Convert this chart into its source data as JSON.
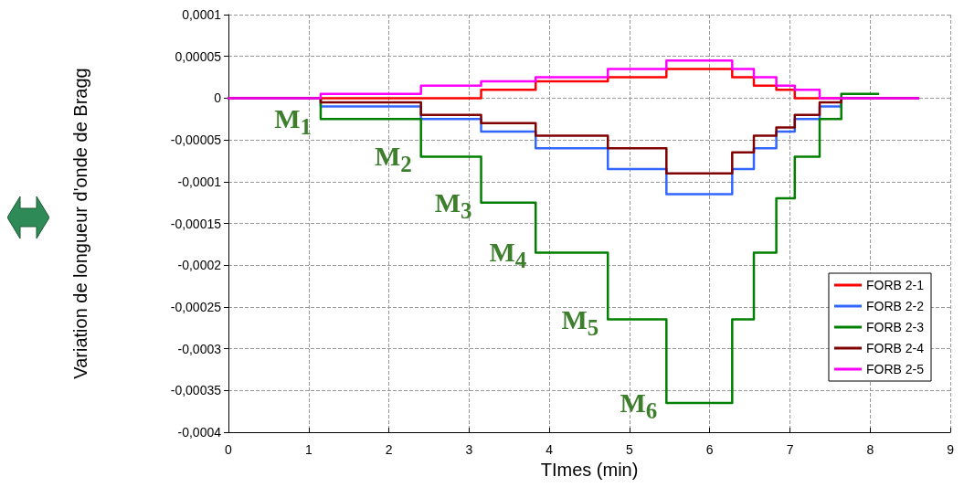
{
  "chart_data": {
    "type": "step",
    "xlabel": "TImes (min)",
    "ylabel": "Variation de longueur d'onde de Bragg",
    "xlim": [
      0,
      9
    ],
    "xticks": [
      0,
      1,
      2,
      3,
      4,
      5,
      6,
      7,
      8,
      9
    ],
    "ylim": [
      -0.0004,
      0.0001
    ],
    "yticks": [
      {
        "value": -0.0004,
        "label": "-0,0004"
      },
      {
        "value": -0.00035,
        "label": "-0,00035"
      },
      {
        "value": -0.0003,
        "label": "-0,0003"
      },
      {
        "value": -0.00025,
        "label": "-0,00025"
      },
      {
        "value": -0.0002,
        "label": "-0,0002"
      },
      {
        "value": -0.00015,
        "label": "-0,00015"
      },
      {
        "value": -0.0001,
        "label": "-0,0001"
      },
      {
        "value": -5e-05,
        "label": "-0,00005"
      },
      {
        "value": 0,
        "label": "0"
      },
      {
        "value": 5e-05,
        "label": "0,00005"
      },
      {
        "value": 0.0001,
        "label": "0,0001"
      }
    ],
    "grid": true,
    "legend": "bottom right",
    "marker": "none",
    "line_style": "solid",
    "series": [
      {
        "name": "FORB 2-1",
        "color": "#ff0000",
        "x": [
          0,
          3.15,
          3.83,
          4.73,
          5.46,
          6.28,
          6.55,
          6.83,
          7.06,
          8.6
        ],
        "values": [
          0,
          1e-05,
          2e-05,
          2.5e-05,
          3.5e-05,
          2.5e-05,
          1.5e-05,
          1e-05,
          0,
          0
        ]
      },
      {
        "name": "FORB 2-2",
        "color": "#3366ff",
        "x": [
          0,
          1.15,
          2.4,
          3.15,
          3.83,
          4.73,
          5.46,
          6.28,
          6.55,
          6.83,
          7.06,
          7.37,
          7.64,
          8.6
        ],
        "values": [
          0,
          -1e-05,
          -2.5e-05,
          -4e-05,
          -6e-05,
          -8.5e-05,
          -0.000115,
          -8.5e-05,
          -6e-05,
          -4e-05,
          -2.5e-05,
          -1e-05,
          0,
          0
        ]
      },
      {
        "name": "FORB 2-3",
        "color": "#008000",
        "x": [
          0,
          1.15,
          2.4,
          3.15,
          3.83,
          4.73,
          5.46,
          6.28,
          6.55,
          6.83,
          7.06,
          7.37,
          7.64,
          8.1
        ],
        "values": [
          0,
          -2.5e-05,
          -7e-05,
          -0.000125,
          -0.000185,
          -0.000265,
          -0.000365,
          -0.000265,
          -0.000185,
          -0.00012,
          -7e-05,
          -2.5e-05,
          5e-06,
          5e-06
        ]
      },
      {
        "name": "FORB 2-4",
        "color": "#800000",
        "x": [
          0,
          1.15,
          2.4,
          3.15,
          3.83,
          4.73,
          5.46,
          6.28,
          6.55,
          6.83,
          7.06,
          7.37,
          7.64,
          8.6
        ],
        "values": [
          0,
          -5e-06,
          -2e-05,
          -3e-05,
          -4.5e-05,
          -6e-05,
          -9e-05,
          -6.5e-05,
          -4.5e-05,
          -3.5e-05,
          -2e-05,
          -5e-06,
          0,
          0
        ]
      },
      {
        "name": "FORB 2-5",
        "color": "#ff00ff",
        "x": [
          0,
          1.15,
          2.4,
          3.15,
          3.83,
          4.73,
          5.46,
          6.28,
          6.55,
          6.83,
          7.06,
          7.37,
          7.64,
          8.6
        ],
        "values": [
          0,
          5e-06,
          1.5e-05,
          2e-05,
          2.5e-05,
          3.5e-05,
          4.5e-05,
          3.5e-05,
          2.5e-05,
          1.5e-05,
          1e-05,
          0,
          0,
          0
        ]
      }
    ],
    "annotations": [
      {
        "text": "M$_{1}$",
        "x": 1.15,
        "y": -2.5e-05
      },
      {
        "text": "M$_{2}$",
        "x": 2.4,
        "y": -7e-05
      },
      {
        "text": "M$_{3}$",
        "x": 3.15,
        "y": -0.000125
      },
      {
        "text": "M$_{4}$",
        "x": 3.83,
        "y": -0.000185
      },
      {
        "text": "M$_{5}$",
        "x": 4.73,
        "y": -0.000265
      },
      {
        "text": "M$_{6}$",
        "x": 5.46,
        "y": -0.000365
      }
    ]
  }
}
